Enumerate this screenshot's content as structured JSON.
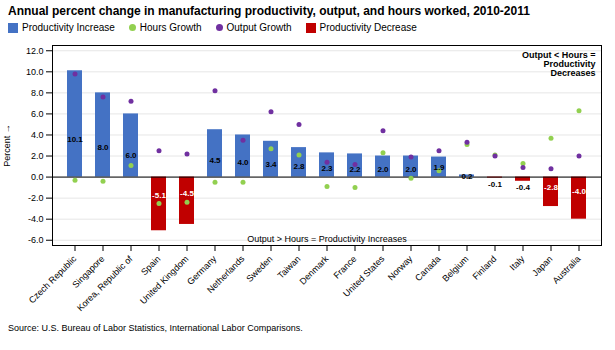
{
  "chart_data": {
    "type": "bar",
    "title": "Annual percent change in manufacturing productivity, output, and hours worked, 2010-2011",
    "ylabel": "Percent",
    "source": "Source:  U.S. Bureau of Labor Statistics, International Labor Comparisons.",
    "annotations": [
      "Output > Hours = Productivity Increases",
      "Output < Hours =\nProductivity\nDecreases"
    ],
    "categories": [
      "Czech Republic",
      "Singapore",
      "Korea, Republic of",
      "Spain",
      "United Kingdom",
      "Germany",
      "Netherlands",
      "Sweden",
      "Taiwan",
      "Denmark",
      "France",
      "United States",
      "Norway",
      "Canada",
      "Belgium",
      "Finland",
      "Italy",
      "Japan",
      "Australia"
    ],
    "series": [
      {
        "name": "Productivity Increase",
        "type": "bar",
        "color": "#4472C4",
        "data_labels": true,
        "values": [
          10.1,
          8.0,
          6.0,
          null,
          null,
          4.5,
          4.0,
          3.4,
          2.8,
          2.3,
          2.2,
          2.0,
          2.0,
          1.9,
          0.2,
          null,
          null,
          null,
          null
        ],
        "value_labels": [
          "10.1",
          "8.0",
          "6.0",
          null,
          null,
          "4.5",
          "4.0",
          "3.4",
          "2.8",
          "2.3",
          "2.2",
          "2.0",
          "2.0",
          "1.9",
          "0.2",
          null,
          null,
          null,
          null
        ]
      },
      {
        "name": "Hours Growth",
        "type": "scatter",
        "marker": "circle",
        "color": "#92D050",
        "values": [
          -0.3,
          -0.4,
          1.1,
          -2.5,
          -2.4,
          -0.5,
          -0.5,
          2.7,
          2.1,
          -0.9,
          -1.0,
          2.3,
          -0.1,
          0.6,
          3.1,
          2.1,
          1.3,
          3.7,
          6.3
        ]
      },
      {
        "name": "Output Growth",
        "type": "scatter",
        "marker": "circle",
        "color": "#7030A0",
        "values": [
          9.8,
          7.6,
          7.2,
          2.5,
          2.2,
          8.2,
          3.5,
          6.2,
          5.0,
          1.4,
          1.2,
          4.4,
          1.9,
          2.5,
          3.3,
          2.0,
          0.9,
          0.8,
          2.0
        ]
      },
      {
        "name": "Productivity Decrease",
        "type": "bar",
        "color": "#C00000",
        "data_labels": true,
        "values": [
          null,
          null,
          null,
          -5.1,
          -4.5,
          null,
          null,
          null,
          null,
          null,
          null,
          null,
          null,
          null,
          null,
          -0.1,
          -0.4,
          -2.8,
          -4.0
        ],
        "value_labels": [
          null,
          null,
          null,
          "-5.1",
          "-4.5",
          null,
          null,
          null,
          null,
          null,
          null,
          null,
          null,
          null,
          null,
          "-0.1",
          "-0.4",
          "-2.8",
          "-4.0"
        ]
      }
    ],
    "ylim": [
      -6.5,
      12.5
    ],
    "yticks": [
      {
        "value": -6,
        "label": "-6.0"
      },
      {
        "value": -4,
        "label": "-4.0"
      },
      {
        "value": -2,
        "label": "-2.0"
      },
      {
        "value": 0,
        "label": "0.0"
      },
      {
        "value": 2,
        "label": "2.0"
      },
      {
        "value": 4,
        "label": "4.0"
      },
      {
        "value": 6,
        "label": "6.0"
      },
      {
        "value": 8,
        "label": "8.0"
      },
      {
        "value": 10,
        "label": "10.0"
      },
      {
        "value": 12,
        "label": "12.0"
      }
    ],
    "grid": true,
    "legend": "top"
  }
}
